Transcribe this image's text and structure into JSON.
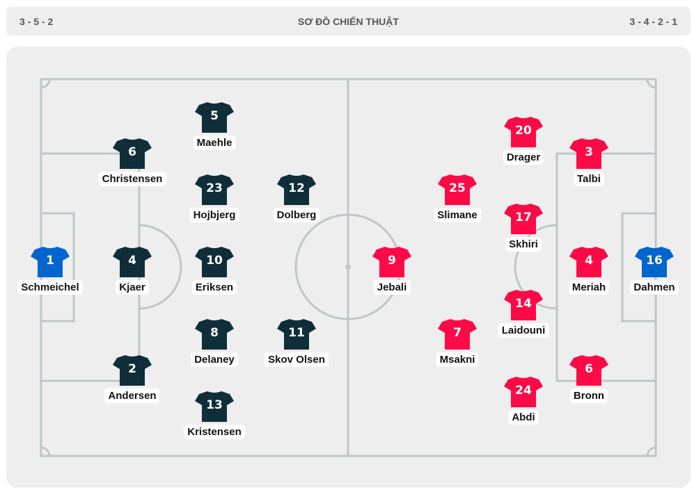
{
  "header": {
    "home_formation": "3 - 5 - 2",
    "title": "SƠ ĐỒ CHIẾN THUẬT",
    "away_formation": "3 - 4 - 2 - 1"
  },
  "colors": {
    "home_outfield": "#0f2e38",
    "away_outfield": "#ff0a47",
    "goalkeeper": "#0065cc",
    "pitch": "#eeeeee",
    "lines": "#c0c6c6"
  },
  "home_players": [
    {
      "number": "1",
      "name": "Schmeichel",
      "role": "goalkeeper"
    },
    {
      "number": "6",
      "name": "Christensen"
    },
    {
      "number": "4",
      "name": "Kjaer"
    },
    {
      "number": "2",
      "name": "Andersen"
    },
    {
      "number": "5",
      "name": "Maehle"
    },
    {
      "number": "23",
      "name": "Hojbjerg"
    },
    {
      "number": "10",
      "name": "Eriksen"
    },
    {
      "number": "8",
      "name": "Delaney"
    },
    {
      "number": "13",
      "name": "Kristensen"
    },
    {
      "number": "12",
      "name": "Dolberg"
    },
    {
      "number": "11",
      "name": "Skov Olsen"
    }
  ],
  "away_players": [
    {
      "number": "16",
      "name": "Dahmen",
      "role": "goalkeeper"
    },
    {
      "number": "3",
      "name": "Talbi"
    },
    {
      "number": "4",
      "name": "Meriah"
    },
    {
      "number": "6",
      "name": "Bronn"
    },
    {
      "number": "20",
      "name": "Drager"
    },
    {
      "number": "17",
      "name": "Skhiri"
    },
    {
      "number": "14",
      "name": "Laidouni"
    },
    {
      "number": "24",
      "name": "Abdi"
    },
    {
      "number": "25",
      "name": "Slimane"
    },
    {
      "number": "7",
      "name": "Msakni"
    },
    {
      "number": "9",
      "name": "Jebali"
    }
  ]
}
